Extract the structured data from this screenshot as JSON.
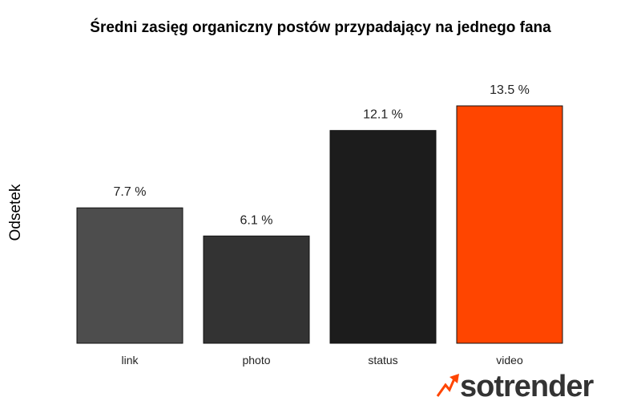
{
  "chart_data": {
    "type": "bar",
    "title": "Średni zasięg organiczny postów przypadający na jednego fana",
    "ylabel": "Odsetek",
    "xlabel": "",
    "categories": [
      "link",
      "photo",
      "status",
      "video"
    ],
    "values": [
      7.7,
      6.1,
      12.1,
      13.5
    ],
    "value_labels": [
      "7.7 %",
      "6.1 %",
      "12.1 %",
      "13.5 %"
    ],
    "colors": [
      "#4d4d4d",
      "#333333",
      "#1c1c1c",
      "#ff4500"
    ],
    "ylim": [
      0,
      13.5
    ],
    "grid": false,
    "legend": "none"
  },
  "logo": {
    "text": "sotrender",
    "icon": "rising-arrow-icon",
    "accent": "#ff4500"
  }
}
